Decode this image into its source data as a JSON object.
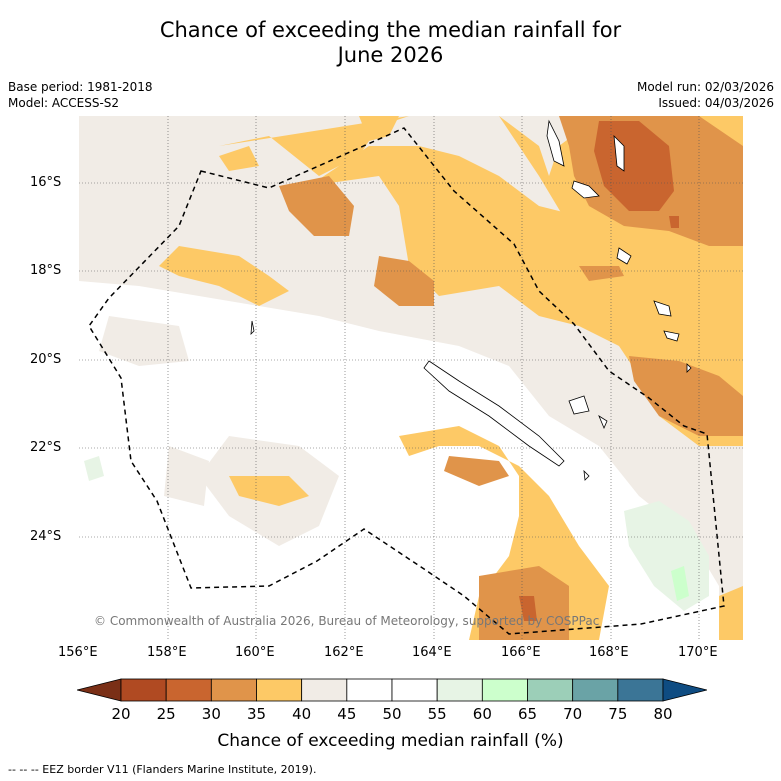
{
  "title_line1": "Chance of exceeding the median rainfall for",
  "title_line2": "June 2026",
  "base_period": "Base period: 1981-2018",
  "model": "Model: ACCESS-S2",
  "model_run": "Model run: 02/03/2026",
  "issued": "Issued: 04/03/2026",
  "lat_labels": [
    "16°S",
    "18°S",
    "20°S",
    "22°S",
    "24°S"
  ],
  "lon_labels": [
    "156°E",
    "158°E",
    "160°E",
    "162°E",
    "164°E",
    "166°E",
    "168°E",
    "170°E"
  ],
  "colorbar": {
    "labels": [
      "20",
      "25",
      "30",
      "35",
      "40",
      "45",
      "50",
      "55",
      "60",
      "65",
      "70",
      "75",
      "80"
    ],
    "colors": [
      "#7a2f16",
      "#b04a22",
      "#c9652f",
      "#e0944a",
      "#fdc966",
      "#f1ece6",
      "#ffffff",
      "#ffffff",
      "#e7f4e5",
      "#ccffcc",
      "#9ccfb8",
      "#6aa3a6",
      "#3b7596",
      "#0f4c82"
    ],
    "title": "Chance of exceeding median rainfall (%)"
  },
  "copyright": "© Commonwealth of Australia 2026, Bureau of Meteorology, supported by COSPPac",
  "footer": "--  --  -- EEZ border V11 (Flanders Marine Institute, 2019)."
}
